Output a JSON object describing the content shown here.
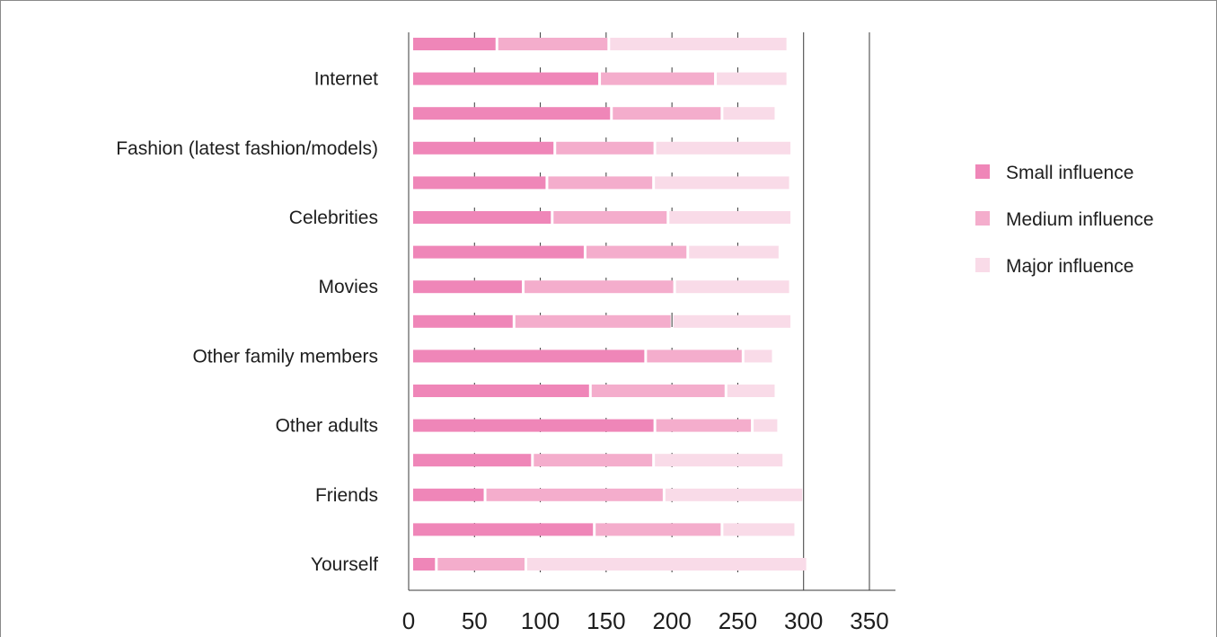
{
  "chart_data": {
    "type": "bar",
    "orientation": "horizontal",
    "stacked": true,
    "title": "",
    "xlabel": "",
    "ylabel": "",
    "xlim": [
      0,
      350
    ],
    "x_ticks": [
      0,
      50,
      100,
      150,
      200,
      250,
      300,
      350
    ],
    "legend": {
      "placement": "right"
    },
    "category_labels": [
      "Internet",
      "Fashion (latest fashion/models)",
      "Celebrities",
      "Movies",
      "Other family members",
      "Other adults",
      "Friends",
      "Yourself"
    ],
    "rows_per_category": 2,
    "series": [
      {
        "name": "Small influence",
        "color": "#ef86b8",
        "values": [
          66,
          144,
          153,
          110,
          104,
          108,
          133,
          86,
          79,
          179,
          137,
          186,
          93,
          57,
          140,
          20
        ]
      },
      {
        "name": "Medium influence",
        "color": "#f4adcc",
        "values": [
          85,
          88,
          84,
          76,
          81,
          88,
          78,
          115,
          120,
          74,
          103,
          74,
          92,
          136,
          97,
          68
        ]
      },
      {
        "name": "Major influence",
        "color": "#f9dbe8",
        "values": [
          136,
          55,
          41,
          104,
          104,
          94,
          70,
          88,
          91,
          23,
          38,
          20,
          99,
          106,
          56,
          214
        ]
      }
    ]
  }
}
